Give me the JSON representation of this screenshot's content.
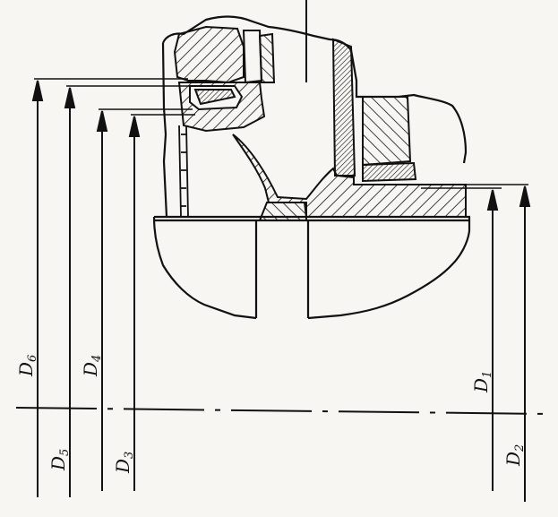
{
  "drawing": {
    "ink_color": "#111111",
    "paper_color": "#f7f6f3",
    "labels": {
      "d1": {
        "main": "D",
        "sub": "1"
      },
      "d2": {
        "main": "D",
        "sub": "2"
      },
      "d3": {
        "main": "D",
        "sub": "3"
      },
      "d4": {
        "main": "D",
        "sub": "4"
      },
      "d5": {
        "main": "D",
        "sub": "5"
      },
      "d6": {
        "main": "D",
        "sub": "6"
      }
    }
  }
}
